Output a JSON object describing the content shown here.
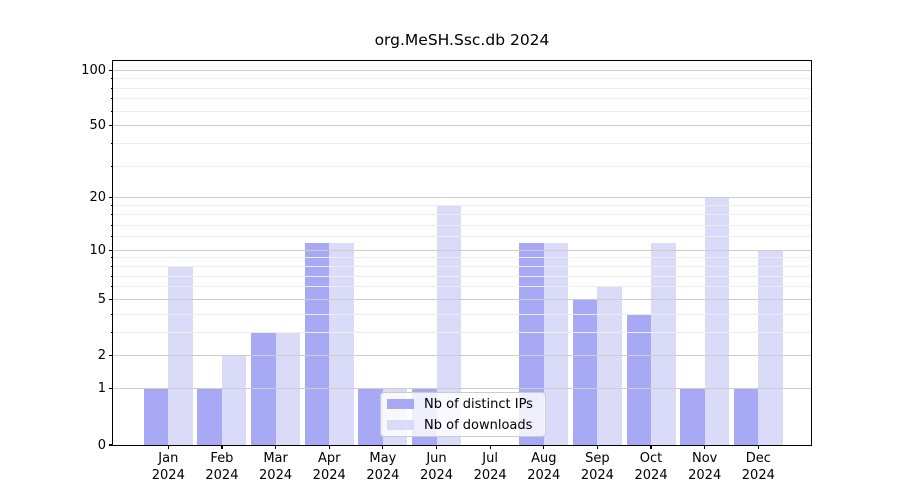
{
  "title": "org.MeSH.Ssc.db 2024",
  "legend": {
    "items": [
      {
        "label": "Nb of distinct IPs",
        "color": "#a8a9f5"
      },
      {
        "label": "Nb of downloads",
        "color": "#d9dbf9"
      }
    ]
  },
  "colors": {
    "bar_distinct_ips": "#a8a9f5",
    "bar_downloads": "#d9dbf9",
    "grid_major": "#cdcdcd",
    "grid_minor": "#ededed",
    "axis": "#000000",
    "background": "#ffffff"
  },
  "chart_data": {
    "type": "bar",
    "title": "org.MeSH.Ssc.db 2024",
    "categories": [
      "Jan 2024",
      "Feb 2024",
      "Mar 2024",
      "Apr 2024",
      "May 2024",
      "Jun 2024",
      "Jul 2024",
      "Aug 2024",
      "Sep 2024",
      "Oct 2024",
      "Nov 2024",
      "Dec 2024"
    ],
    "series": [
      {
        "name": "Nb of distinct IPs",
        "values": [
          1,
          1,
          3,
          11,
          1,
          1,
          0,
          11,
          5,
          4,
          1,
          1
        ]
      },
      {
        "name": "Nb of downloads",
        "values": [
          8,
          2,
          3,
          11,
          1,
          18,
          0,
          11,
          6,
          11,
          20,
          10
        ]
      }
    ],
    "xlabel": "",
    "ylabel": "",
    "y_scale": "log10(1+v)",
    "y_ticks": [
      0,
      1,
      2,
      5,
      10,
      20,
      50,
      100
    ],
    "y_minor_ticks": [
      3,
      4,
      6,
      7,
      8,
      9,
      12,
      14,
      16,
      18,
      30,
      40,
      60,
      70,
      80,
      90
    ],
    "ylim": [
      0,
      112
    ],
    "grid": true,
    "legend_position": "inside lower-center"
  }
}
